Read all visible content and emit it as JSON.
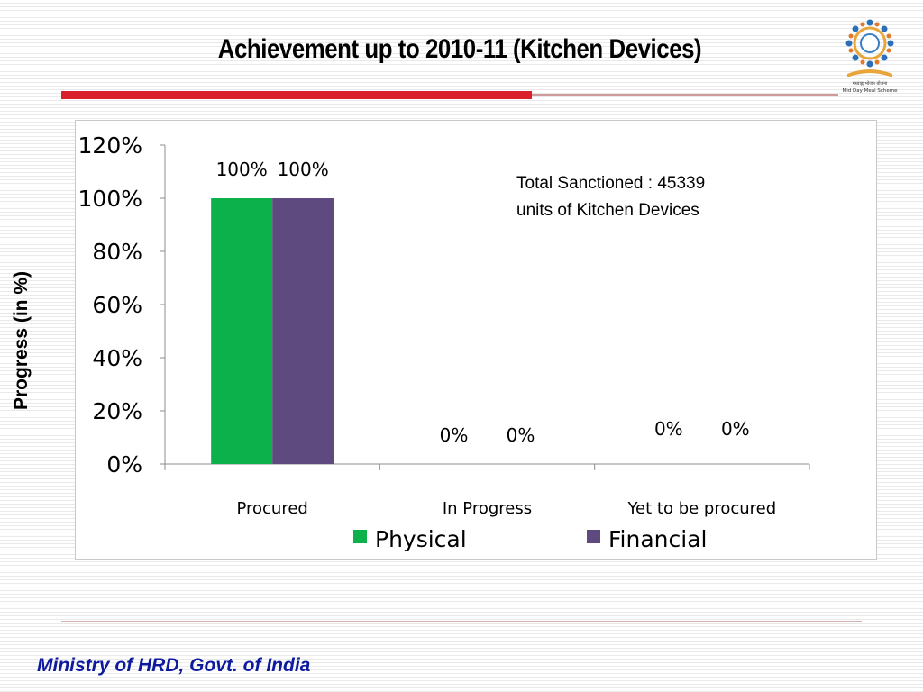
{
  "slide": {
    "title": "Achievement up to 2010-11 (Kitchen Devices)",
    "footer": "Ministry of HRD, Govt. of India",
    "logo_text": "Mid Day Meal Scheme"
  },
  "colors": {
    "physical": "#0db14b",
    "financial": "#5e4a7e",
    "title_bar": "#d9202a",
    "footer_text": "#0d1a9e"
  },
  "chart_data": {
    "type": "bar",
    "title": "",
    "xlabel": "",
    "ylabel": "Progress (in %)",
    "categories": [
      "Procured",
      "In Progress",
      "Yet to be procured"
    ],
    "series": [
      {
        "name": "Physical",
        "values": [
          100,
          0,
          0
        ],
        "labels": [
          "100%",
          "0%",
          "0%"
        ]
      },
      {
        "name": "Financial",
        "values": [
          100,
          0,
          0
        ],
        "labels": [
          "100%",
          "0%",
          "0%"
        ]
      }
    ],
    "ylim": [
      0,
      120
    ],
    "yticks": [
      "0%",
      "20%",
      "40%",
      "60%",
      "80%",
      "100%",
      "120%"
    ],
    "grid": false,
    "legend": "bottom",
    "annotation": "Total Sanctioned : 45339 units of Kitchen Devices"
  }
}
